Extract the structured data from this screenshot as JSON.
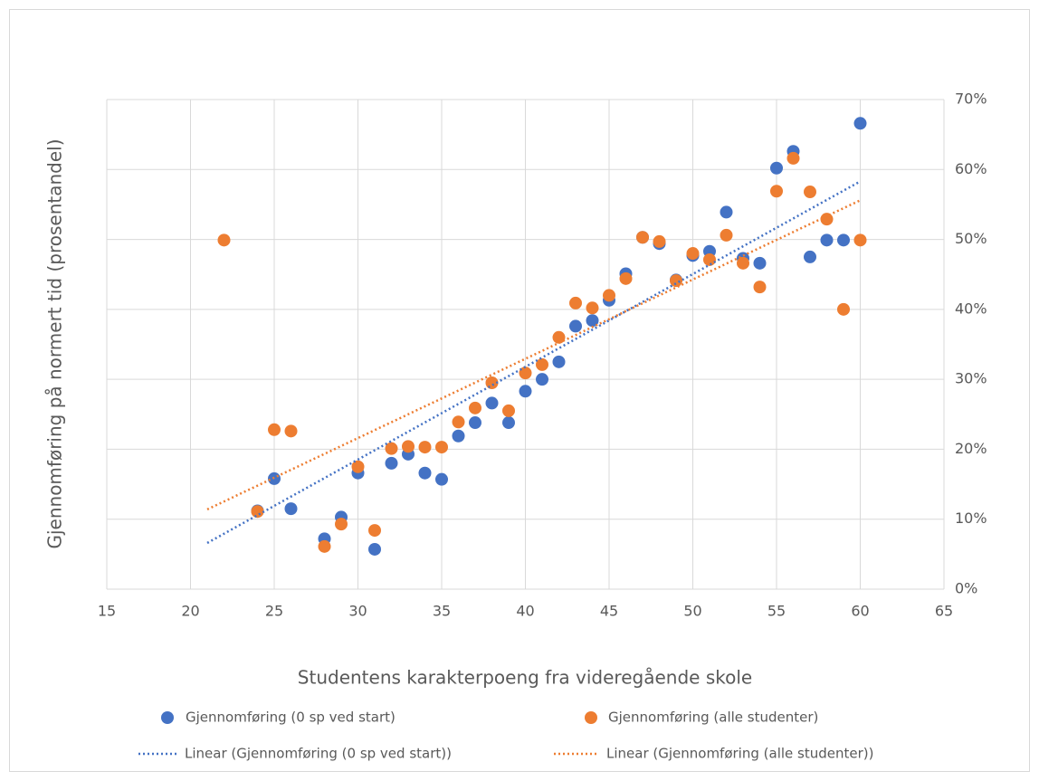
{
  "chart_data": {
    "type": "scatter",
    "xlabel": "Studentens karakterpoeng fra videregående skole",
    "ylabel": "Gjennomføring på normert tid (prosentandel)",
    "xlim": [
      15,
      65
    ],
    "xticks": [
      15,
      20,
      25,
      30,
      35,
      40,
      45,
      50,
      55,
      60,
      65
    ],
    "ylim": [
      0,
      70
    ],
    "yticks": [
      {
        "value": 0,
        "label": "0%"
      },
      {
        "value": 10,
        "label": "10%"
      },
      {
        "value": 20,
        "label": "20%"
      },
      {
        "value": 30,
        "label": "30%"
      },
      {
        "value": 40,
        "label": "40%"
      },
      {
        "value": 50,
        "label": "50%"
      },
      {
        "value": 60,
        "label": "60%"
      },
      {
        "value": 70,
        "label": "70%"
      }
    ],
    "grid": true,
    "series": [
      {
        "name": "Gjennomføring (0 sp ved start)",
        "color": "#4472c4",
        "x": [
          24,
          25,
          26,
          28,
          29,
          30,
          31,
          32,
          33,
          34,
          35,
          36,
          37,
          38,
          39,
          40,
          41,
          42,
          43,
          44,
          45,
          46,
          47,
          48,
          49,
          50,
          51,
          52,
          53,
          54,
          55,
          56,
          57,
          58,
          59,
          60
        ],
        "values": [
          11.2,
          15.8,
          11.5,
          7.2,
          10.3,
          16.6,
          5.7,
          18.0,
          19.3,
          16.6,
          15.7,
          21.9,
          23.8,
          26.6,
          23.8,
          28.3,
          30.0,
          32.5,
          37.6,
          38.4,
          41.3,
          45.1,
          50.3,
          49.4,
          44.2,
          47.7,
          48.3,
          53.9,
          47.3,
          46.6,
          60.2,
          62.6,
          47.5,
          49.9,
          49.9,
          66.6
        ]
      },
      {
        "name": "Gjennomføring (alle studenter)",
        "color": "#ed7d31",
        "x": [
          22,
          24,
          25,
          26,
          28,
          29,
          30,
          31,
          32,
          33,
          34,
          35,
          36,
          37,
          38,
          39,
          40,
          41,
          42,
          43,
          44,
          45,
          46,
          47,
          48,
          49,
          50,
          51,
          52,
          53,
          54,
          55,
          56,
          57,
          58,
          59,
          60
        ],
        "values": [
          49.9,
          11.1,
          22.8,
          22.6,
          6.1,
          9.3,
          17.5,
          8.4,
          20.1,
          20.4,
          20.3,
          20.3,
          23.9,
          25.9,
          29.5,
          25.5,
          30.9,
          32.1,
          36.0,
          40.9,
          40.2,
          42.0,
          44.4,
          50.3,
          49.7,
          44.1,
          48.0,
          47.1,
          50.6,
          46.6,
          43.2,
          56.9,
          61.6,
          56.8,
          52.9,
          40.0,
          49.9
        ]
      }
    ],
    "trendlines": [
      {
        "name": "Linear (Gjennomføring (0 sp ved start))",
        "color": "#4472c4",
        "x": [
          21,
          60
        ],
        "values": [
          6.6,
          58.3
        ]
      },
      {
        "name": "Linear (Gjennomføring (alle studenter))",
        "color": "#ed7d31",
        "x": [
          21,
          60
        ],
        "values": [
          11.4,
          55.6
        ]
      }
    ]
  }
}
